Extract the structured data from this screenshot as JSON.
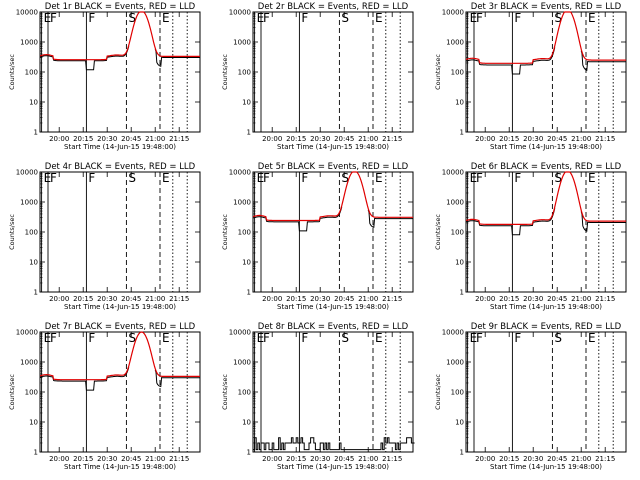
{
  "chart_data": {
    "type": "line",
    "series_legend": {
      "black": "Events",
      "red": "LLD"
    },
    "y_scale": "log",
    "ylim": [
      1,
      10000
    ],
    "y_ticks": [
      1,
      10,
      100,
      1000,
      10000
    ],
    "y_tick_labels": [
      "1",
      "10",
      "100",
      "1000",
      "10000"
    ],
    "x_range_min": [
      0,
      100
    ],
    "x_ticks_min": [
      12,
      27,
      42,
      57,
      72,
      87
    ],
    "x_tick_labels": [
      "20:00",
      "20:15",
      "20:30",
      "20:45",
      "21:00",
      "21:15"
    ],
    "xlabel": "Start Time (14-Jun-15 19:48:00)",
    "ylabel": "Counts/sec",
    "markers": [
      {
        "label": "E",
        "x": 1,
        "style": "solid"
      },
      {
        "label": "F",
        "x": 5,
        "style": "solid"
      },
      {
        "label": "F",
        "x": 29,
        "style": "solid"
      },
      {
        "label": "S",
        "x": 54,
        "style": "dashed"
      },
      {
        "label": "E",
        "x": 75,
        "style": "dashed"
      },
      {
        "label": "",
        "x": 83,
        "style": "dotted"
      },
      {
        "label": "",
        "x": 92,
        "style": "dotted"
      }
    ],
    "panels": [
      {
        "title": "Det 1r BLACK = Events, RED = LLD",
        "profile": "flare",
        "base": 330,
        "peak": 11000,
        "black_offset": 0.92
      },
      {
        "title": "Det 2r BLACK = Events, RED = LLD",
        "profile": "none"
      },
      {
        "title": "Det 3r BLACK = Events, RED = LLD",
        "profile": "flare",
        "base": 250,
        "peak": 12000,
        "black_offset": 0.88
      },
      {
        "title": "Det 4r BLACK = Events, RED = LLD",
        "profile": "none"
      },
      {
        "title": "Det 5r BLACK = Events, RED = LLD",
        "profile": "flare",
        "base": 310,
        "peak": 11000,
        "black_offset": 0.9
      },
      {
        "title": "Det 6r BLACK = Events, RED = LLD",
        "profile": "flare",
        "base": 230,
        "peak": 11000,
        "black_offset": 0.9
      },
      {
        "title": "Det 7r BLACK = Events, RED = LLD",
        "profile": "flare",
        "base": 330,
        "peak": 10000,
        "black_offset": 0.9
      },
      {
        "title": "Det 8r BLACK = Events, RED = LLD",
        "profile": "noise",
        "base": 2
      },
      {
        "title": "Det 9r BLACK = Events, RED = LLD",
        "profile": "none"
      }
    ]
  }
}
